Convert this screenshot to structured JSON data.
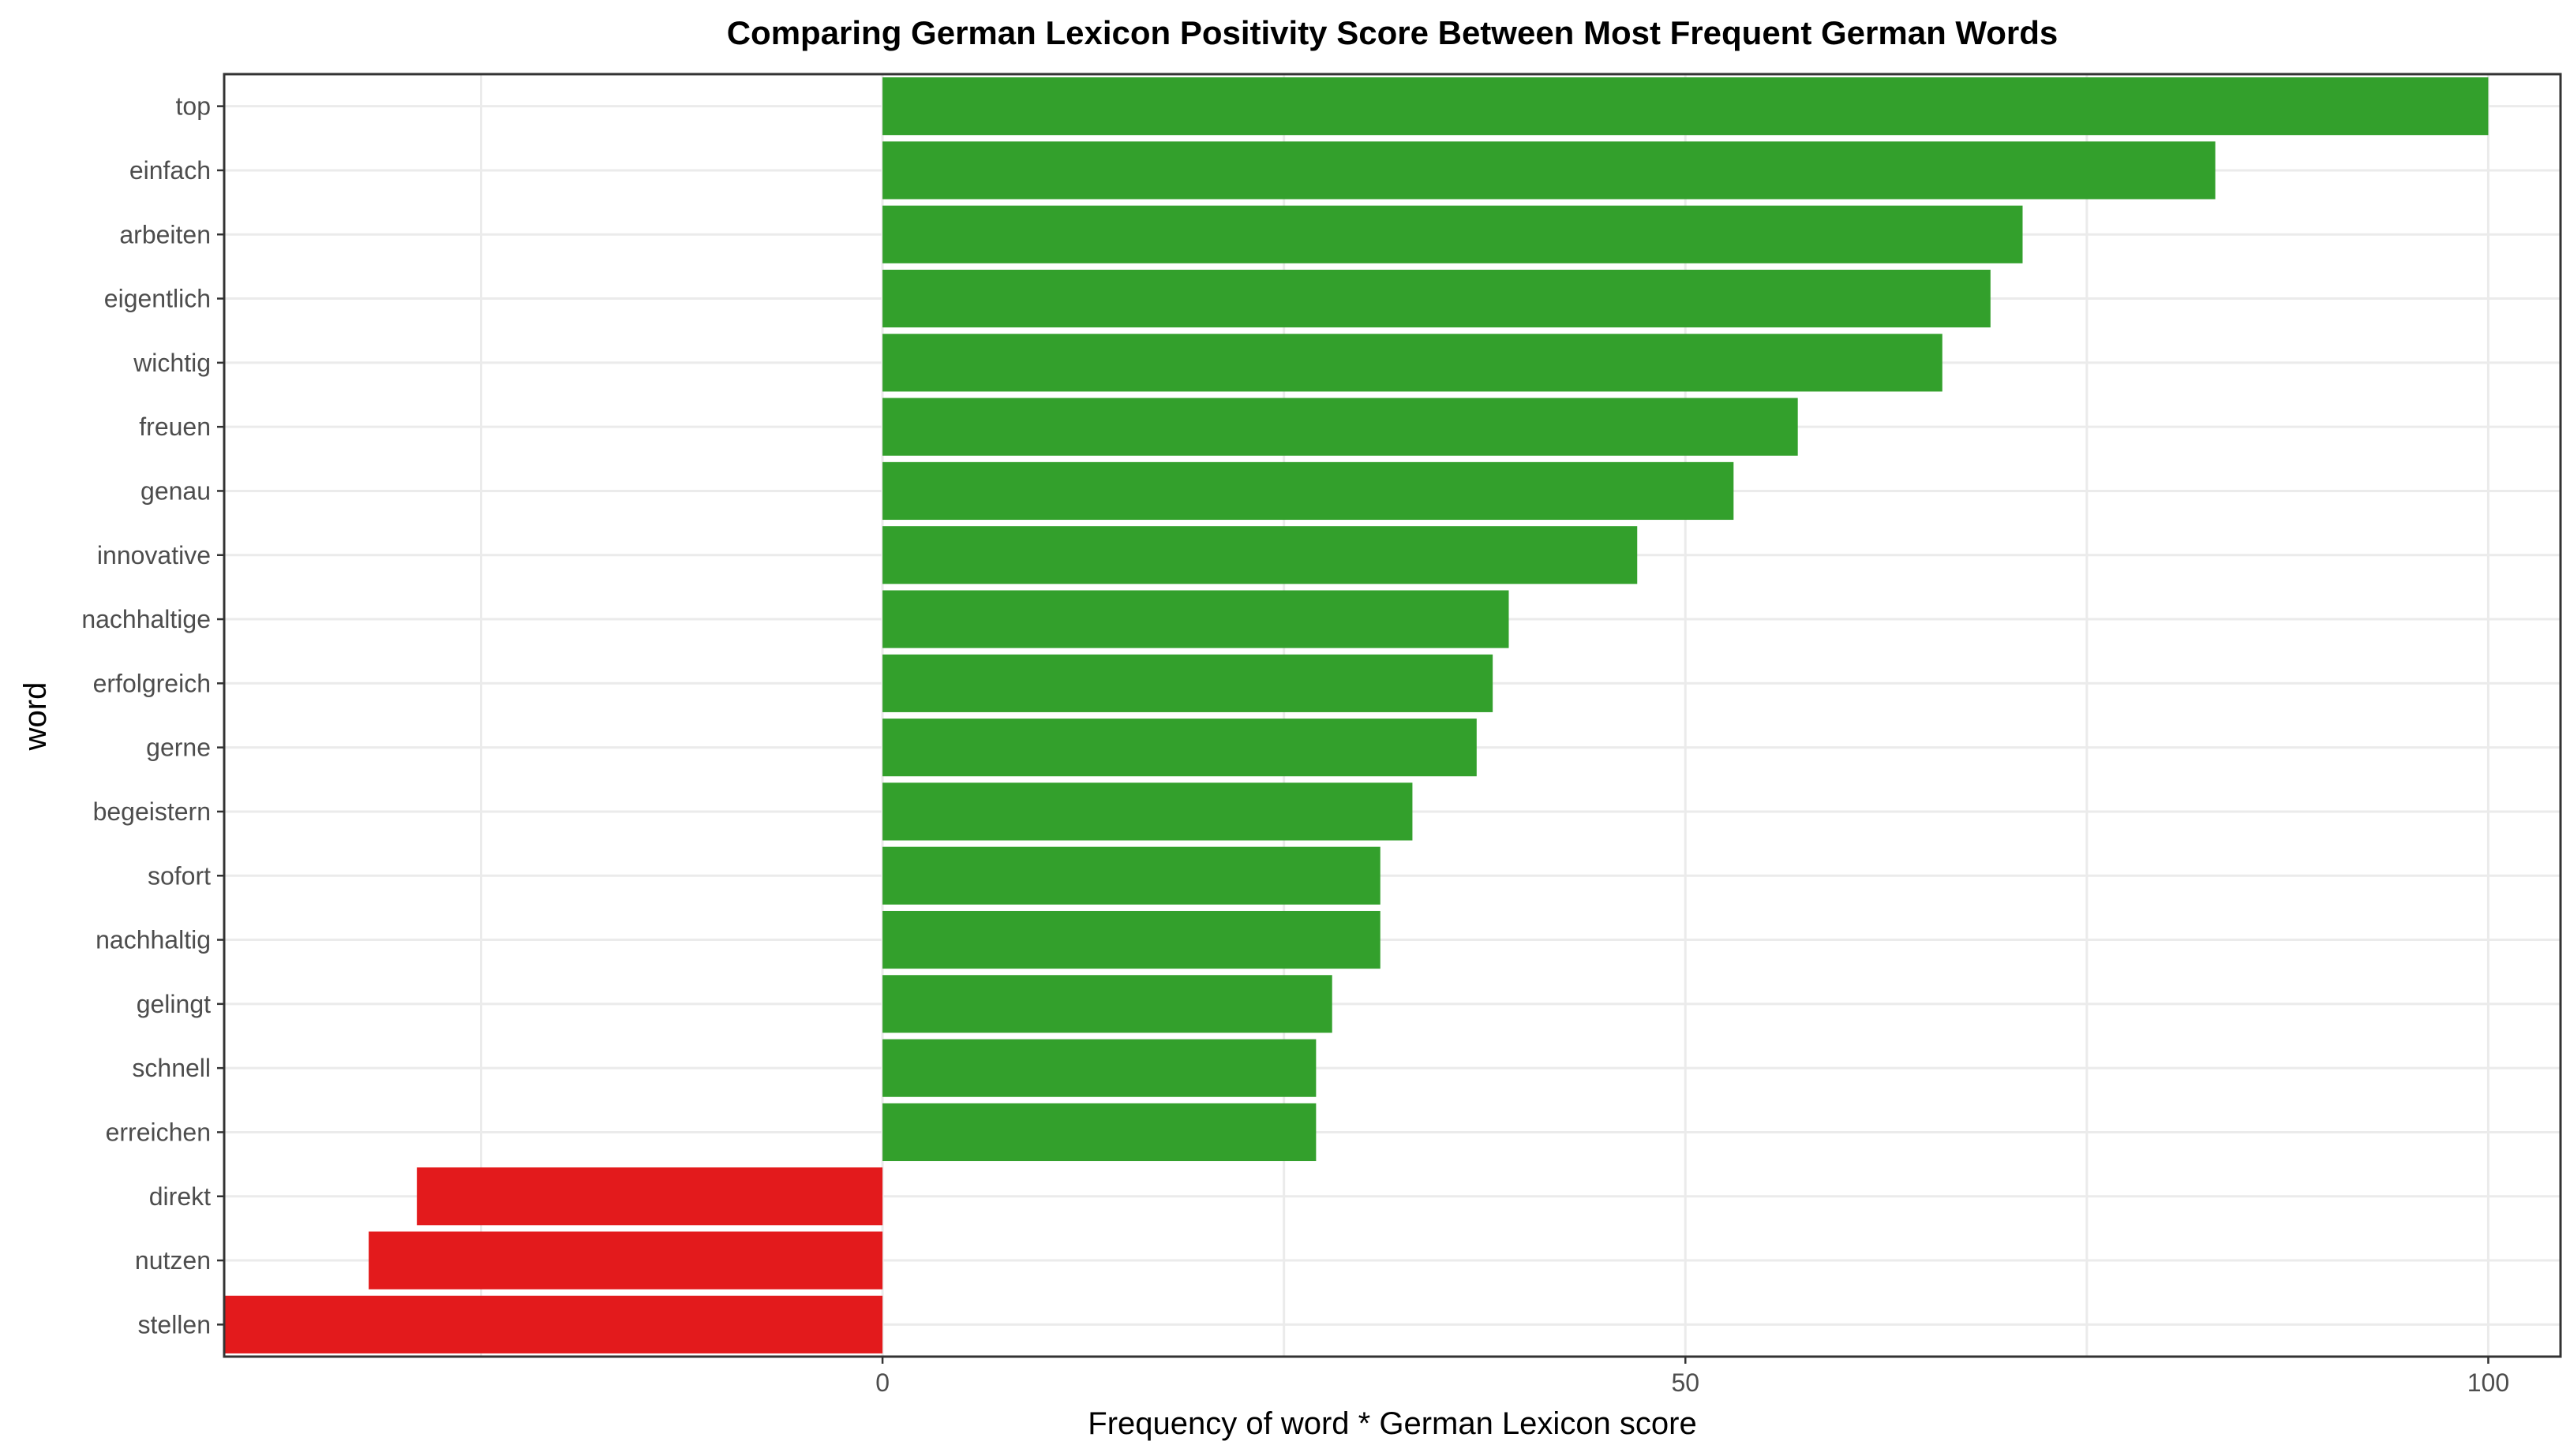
{
  "chart_data": {
    "type": "bar",
    "orientation": "horizontal",
    "title": "Comparing German Lexicon Positivity Score Between Most Frequent German Words",
    "xlabel": "Frequency of word * German Lexicon score",
    "ylabel": "word",
    "xlim": [
      -41,
      104.5
    ],
    "x_ticks": [
      0,
      50,
      100
    ],
    "grid": true,
    "legend": "none",
    "colors": {
      "positive": "#33a02c",
      "negative": "#e31a1c"
    },
    "categories": [
      "top",
      "einfach",
      "arbeiten",
      "eigentlich",
      "wichtig",
      "freuen",
      "genau",
      "innovative",
      "nachhaltige",
      "erfolgreich",
      "gerne",
      "begeistern",
      "sofort",
      "nachhaltig",
      "gelingt",
      "schnell",
      "erreichen",
      "direkt",
      "nutzen",
      "stellen"
    ],
    "values": [
      100,
      83,
      71,
      69,
      66,
      57,
      53,
      47,
      39,
      38,
      37,
      33,
      31,
      31,
      28,
      27,
      27,
      -29,
      -32,
      -41
    ]
  }
}
